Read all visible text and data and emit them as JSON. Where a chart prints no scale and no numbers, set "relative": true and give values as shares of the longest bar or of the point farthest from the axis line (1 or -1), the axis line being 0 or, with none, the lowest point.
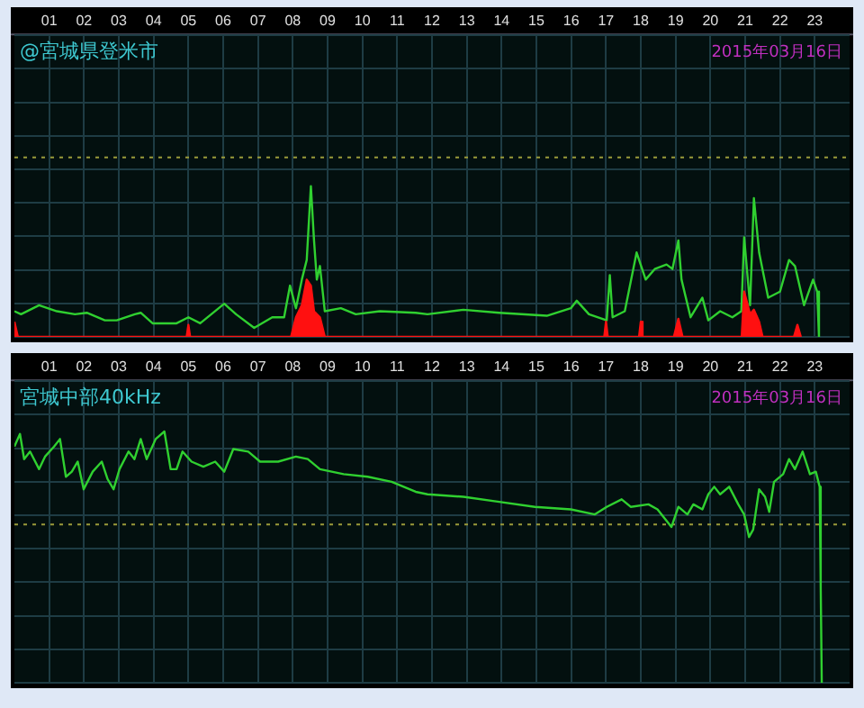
{
  "chart_data": [
    {
      "type": "line",
      "title": "@宮城県登米市",
      "annotations": [
        "2015年03月16日"
      ],
      "relative": true,
      "xlim": [
        0,
        24
      ],
      "xticks": [
        {
          "value": 1,
          "label": "01"
        },
        {
          "value": 2,
          "label": "02"
        },
        {
          "value": 3,
          "label": "03"
        },
        {
          "value": 4,
          "label": "04"
        },
        {
          "value": 5,
          "label": "05"
        },
        {
          "value": 6,
          "label": "06"
        },
        {
          "value": 7,
          "label": "07"
        },
        {
          "value": 8,
          "label": "08"
        },
        {
          "value": 9,
          "label": "09"
        },
        {
          "value": 10,
          "label": "10"
        },
        {
          "value": 11,
          "label": "11"
        },
        {
          "value": 12,
          "label": "12"
        },
        {
          "value": 13,
          "label": "13"
        },
        {
          "value": 14,
          "label": "14"
        },
        {
          "value": 15,
          "label": "15"
        },
        {
          "value": 16,
          "label": "16"
        },
        {
          "value": 17,
          "label": "17"
        },
        {
          "value": 18,
          "label": "18"
        },
        {
          "value": 19,
          "label": "19"
        },
        {
          "value": 20,
          "label": "20"
        },
        {
          "value": 21,
          "label": "21"
        },
        {
          "value": 22,
          "label": "22"
        },
        {
          "value": 23,
          "label": "23"
        }
      ],
      "grid": true,
      "legend": false,
      "marker": "none",
      "ref_lines": [
        {
          "axis": "y",
          "value": 1.19,
          "color": "#9a9a3a",
          "line_style": "dotted"
        }
      ],
      "series": [
        {
          "type": "area",
          "color": "#ff1010",
          "x": [
            0,
            0.05,
            0.1,
            4.95,
            5.0,
            5.05,
            7.95,
            8.09,
            8.26,
            8.4,
            8.52,
            8.61,
            8.78,
            8.92,
            16.95,
            17.0,
            17.05,
            17.95,
            18.0,
            18.05,
            18.95,
            19.08,
            19.2,
            20.9,
            20.97,
            21.14,
            21.25,
            21.4,
            21.5,
            22.4,
            22.5,
            22.6
          ],
          "values": [
            0.1,
            0.1,
            0,
            0,
            0.08,
            0,
            0,
            0.13,
            0.21,
            0.38,
            0.34,
            0.17,
            0.13,
            0,
            0,
            0.1,
            0,
            0,
            0.1,
            0,
            0,
            0.12,
            0,
            0,
            0.3,
            0.15,
            0.18,
            0.1,
            0,
            0,
            0.08,
            0
          ]
        },
        {
          "type": "line",
          "color": "#30d030",
          "x": [
            0,
            0.19,
            0.71,
            1.22,
            1.74,
            2.08,
            2.6,
            2.94,
            3.46,
            3.63,
            3.97,
            4.66,
            5.0,
            5.34,
            6.03,
            6.37,
            6.89,
            7.41,
            7.75,
            7.92,
            8.09,
            8.26,
            8.4,
            8.52,
            8.61,
            8.69,
            8.78,
            8.92,
            9.38,
            9.81,
            10.5,
            11.53,
            11.87,
            12.9,
            13.93,
            15.3,
            15.99,
            16.16,
            16.51,
            17.02,
            17.11,
            17.19,
            17.54,
            17.88,
            18.14,
            18.4,
            18.74,
            18.91,
            19.08,
            19.17,
            19.43,
            19.77,
            19.94,
            20.28,
            20.63,
            20.89,
            20.97,
            21.14,
            21.25,
            21.4,
            21.66,
            22.0,
            22.26,
            22.43,
            22.69,
            22.95,
            23.07,
            23.12
          ],
          "values": [
            0.17,
            0.15,
            0.21,
            0.17,
            0.15,
            0.16,
            0.11,
            0.11,
            0.15,
            0.16,
            0.09,
            0.09,
            0.13,
            0.09,
            0.22,
            0.15,
            0.06,
            0.13,
            0.13,
            0.34,
            0.19,
            0.38,
            0.51,
            1.0,
            0.64,
            0.38,
            0.47,
            0.17,
            0.19,
            0.15,
            0.17,
            0.16,
            0.15,
            0.18,
            0.16,
            0.14,
            0.19,
            0.24,
            0.15,
            0.11,
            0.41,
            0.13,
            0.17,
            0.56,
            0.38,
            0.45,
            0.48,
            0.45,
            0.64,
            0.38,
            0.13,
            0.26,
            0.11,
            0.17,
            0.13,
            0.17,
            0.66,
            0.21,
            0.92,
            0.56,
            0.26,
            0.3,
            0.51,
            0.47,
            0.21,
            0.38,
            0.3,
            0
          ]
        }
      ]
    },
    {
      "type": "line",
      "title": "宮城中部40kHz",
      "annotations": [
        "2015年03月16日"
      ],
      "relative": true,
      "xlim": [
        0,
        24
      ],
      "xticks": [
        {
          "value": 1,
          "label": "01"
        },
        {
          "value": 2,
          "label": "02"
        },
        {
          "value": 3,
          "label": "03"
        },
        {
          "value": 4,
          "label": "04"
        },
        {
          "value": 5,
          "label": "05"
        },
        {
          "value": 6,
          "label": "06"
        },
        {
          "value": 7,
          "label": "07"
        },
        {
          "value": 8,
          "label": "08"
        },
        {
          "value": 9,
          "label": "09"
        },
        {
          "value": 10,
          "label": "10"
        },
        {
          "value": 11,
          "label": "11"
        },
        {
          "value": 12,
          "label": "12"
        },
        {
          "value": 13,
          "label": "13"
        },
        {
          "value": 14,
          "label": "14"
        },
        {
          "value": 15,
          "label": "15"
        },
        {
          "value": 16,
          "label": "16"
        },
        {
          "value": 17,
          "label": "17"
        },
        {
          "value": 18,
          "label": "18"
        },
        {
          "value": 19,
          "label": "19"
        },
        {
          "value": 20,
          "label": "20"
        },
        {
          "value": 21,
          "label": "21"
        },
        {
          "value": 22,
          "label": "22"
        },
        {
          "value": 23,
          "label": "23"
        }
      ],
      "grid": true,
      "legend": false,
      "marker": "none",
      "ref_lines": [
        {
          "axis": "y",
          "value": 0.63,
          "color": "#9a9a3a",
          "line_style": "dotted"
        }
      ],
      "series": [
        {
          "type": "line",
          "color": "#30d030",
          "x": [
            0,
            0.16,
            0.28,
            0.45,
            0.71,
            0.88,
            1.14,
            1.31,
            1.48,
            1.65,
            1.82,
            1.99,
            2.25,
            2.51,
            2.68,
            2.85,
            3.02,
            3.28,
            3.45,
            3.63,
            3.8,
            4.06,
            4.31,
            4.49,
            4.66,
            4.83,
            5.09,
            5.43,
            5.77,
            6.03,
            6.29,
            6.72,
            7.06,
            7.58,
            8.09,
            8.43,
            8.78,
            9.46,
            10.15,
            10.84,
            11.53,
            11.87,
            12.9,
            13.93,
            14.96,
            15.99,
            16.68,
            17.02,
            17.45,
            17.71,
            18.22,
            18.48,
            18.88,
            19.08,
            19.34,
            19.51,
            19.77,
            19.94,
            20.11,
            20.28,
            20.54,
            20.8,
            20.97,
            21.11,
            21.23,
            21.4,
            21.57,
            21.69,
            21.83,
            22.09,
            22.26,
            22.43,
            22.65,
            22.86,
            23.03,
            23.14,
            23.17,
            23.2
          ],
          "values": [
            0.94,
            0.99,
            0.89,
            0.92,
            0.85,
            0.9,
            0.94,
            0.97,
            0.82,
            0.84,
            0.88,
            0.77,
            0.84,
            0.88,
            0.81,
            0.77,
            0.85,
            0.92,
            0.89,
            0.97,
            0.89,
            0.97,
            1.0,
            0.85,
            0.85,
            0.92,
            0.88,
            0.86,
            0.88,
            0.84,
            0.93,
            0.92,
            0.88,
            0.88,
            0.9,
            0.89,
            0.85,
            0.83,
            0.82,
            0.8,
            0.76,
            0.75,
            0.74,
            0.72,
            0.7,
            0.69,
            0.67,
            0.7,
            0.73,
            0.7,
            0.71,
            0.69,
            0.62,
            0.7,
            0.67,
            0.71,
            0.69,
            0.75,
            0.78,
            0.75,
            0.78,
            0.71,
            0.67,
            0.58,
            0.61,
            0.77,
            0.74,
            0.68,
            0.8,
            0.83,
            0.89,
            0.85,
            0.92,
            0.83,
            0.84,
            0.78,
            0.38,
            0
          ]
        }
      ]
    }
  ]
}
